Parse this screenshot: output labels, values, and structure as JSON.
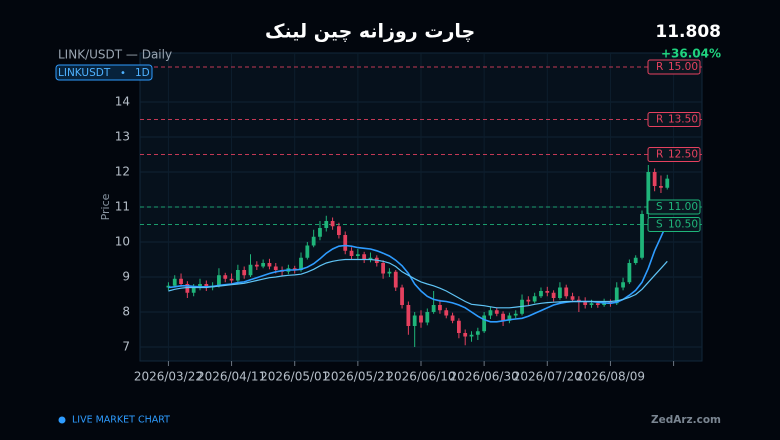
{
  "header": {
    "title": "چارت روزانه چین لینک",
    "subtitle": "LINK/USDT — Daily",
    "price": "11.808",
    "change": "+36.04%",
    "badge_symbol": "LINKUSDT",
    "badge_interval": "1D"
  },
  "footer": {
    "live": "LIVE MARKET CHART",
    "brand": "ZedArz.com"
  },
  "chart_data": {
    "type": "candlestick",
    "y_label": "Price",
    "ylim": [
      6.6,
      15.4
    ],
    "yticks": [
      7,
      8,
      9,
      10,
      11,
      12,
      13,
      14
    ],
    "xlim": [
      "2026-03-13",
      "2026-09-07"
    ],
    "xticks": [
      {
        "value": "2026-03-22",
        "label": "2026/03/22"
      },
      {
        "value": "2026-04-11",
        "label": "2026/04/11"
      },
      {
        "value": "2026-05-01",
        "label": "2026/05/01"
      },
      {
        "value": "2026-05-21",
        "label": "2026/05/21"
      },
      {
        "value": "2026-06-10",
        "label": "2026/06/10"
      },
      {
        "value": "2026-06-30",
        "label": "2026/06/30"
      },
      {
        "value": "2026-07-20",
        "label": "2026/07/20"
      },
      {
        "value": "2026-08-09",
        "label": "2026/08/09"
      },
      {
        "value": "2026-08-29",
        "label": null
      }
    ],
    "grid": true,
    "up_color": "#1fb57a",
    "down_color": "#e5415f",
    "x": [
      "2026-03-22",
      "2026-03-24",
      "2026-03-26",
      "2026-03-28",
      "2026-03-30",
      "2026-04-01",
      "2026-04-03",
      "2026-04-05",
      "2026-04-07",
      "2026-04-09",
      "2026-04-11",
      "2026-04-13",
      "2026-04-15",
      "2026-04-17",
      "2026-04-19",
      "2026-04-21",
      "2026-04-23",
      "2026-04-25",
      "2026-04-27",
      "2026-04-29",
      "2026-05-01",
      "2026-05-03",
      "2026-05-05",
      "2026-05-07",
      "2026-05-09",
      "2026-05-11",
      "2026-05-13",
      "2026-05-15",
      "2026-05-17",
      "2026-05-19",
      "2026-05-21",
      "2026-05-23",
      "2026-05-25",
      "2026-05-27",
      "2026-05-29",
      "2026-05-31",
      "2026-06-02",
      "2026-06-04",
      "2026-06-06",
      "2026-06-08",
      "2026-06-10",
      "2026-06-12",
      "2026-06-14",
      "2026-06-16",
      "2026-06-18",
      "2026-06-20",
      "2026-06-22",
      "2026-06-24",
      "2026-06-26",
      "2026-06-28",
      "2026-06-30",
      "2026-07-02",
      "2026-07-04",
      "2026-07-06",
      "2026-07-08",
      "2026-07-10",
      "2026-07-12",
      "2026-07-14",
      "2026-07-16",
      "2026-07-18",
      "2026-07-20",
      "2026-07-22",
      "2026-07-24",
      "2026-07-26",
      "2026-07-28",
      "2026-07-30",
      "2026-08-01",
      "2026-08-03",
      "2026-08-05",
      "2026-08-07",
      "2026-08-09",
      "2026-08-11",
      "2026-08-13",
      "2026-08-15",
      "2026-08-17",
      "2026-08-19",
      "2026-08-21",
      "2026-08-23",
      "2026-08-25",
      "2026-08-27"
    ],
    "ohlc": [
      [
        8.7,
        8.85,
        8.62,
        8.75
      ],
      [
        8.75,
        9.05,
        8.7,
        8.95
      ],
      [
        8.95,
        9.1,
        8.72,
        8.8
      ],
      [
        8.8,
        8.88,
        8.4,
        8.55
      ],
      [
        8.55,
        8.8,
        8.45,
        8.7
      ],
      [
        8.7,
        8.95,
        8.62,
        8.8
      ],
      [
        8.8,
        8.9,
        8.6,
        8.7
      ],
      [
        8.7,
        8.85,
        8.62,
        8.75
      ],
      [
        8.75,
        9.25,
        8.7,
        9.05
      ],
      [
        9.05,
        9.12,
        8.85,
        8.95
      ],
      [
        8.95,
        9.1,
        8.78,
        8.9
      ],
      [
        8.9,
        9.35,
        8.85,
        9.2
      ],
      [
        9.2,
        9.3,
        8.95,
        9.05
      ],
      [
        9.05,
        9.65,
        9.0,
        9.35
      ],
      [
        9.35,
        9.45,
        9.2,
        9.3
      ],
      [
        9.3,
        9.5,
        9.25,
        9.4
      ],
      [
        9.4,
        9.52,
        9.22,
        9.3
      ],
      [
        9.3,
        9.4,
        9.1,
        9.2
      ],
      [
        9.2,
        9.3,
        9.02,
        9.15
      ],
      [
        9.15,
        9.35,
        9.08,
        9.25
      ],
      [
        9.25,
        9.32,
        9.1,
        9.2
      ],
      [
        9.2,
        9.7,
        9.15,
        9.55
      ],
      [
        9.55,
        10.0,
        9.5,
        9.9
      ],
      [
        9.9,
        10.35,
        9.85,
        10.15
      ],
      [
        10.15,
        10.6,
        10.05,
        10.4
      ],
      [
        10.4,
        10.75,
        10.3,
        10.6
      ],
      [
        10.6,
        10.7,
        10.35,
        10.45
      ],
      [
        10.45,
        10.55,
        10.1,
        10.2
      ],
      [
        10.2,
        10.3,
        9.65,
        9.75
      ],
      [
        9.75,
        9.85,
        9.5,
        9.6
      ],
      [
        9.6,
        9.8,
        9.5,
        9.65
      ],
      [
        9.65,
        9.72,
        9.4,
        9.5
      ],
      [
        9.5,
        9.7,
        9.42,
        9.55
      ],
      [
        9.55,
        9.62,
        9.3,
        9.4
      ],
      [
        9.4,
        9.48,
        8.95,
        9.1
      ],
      [
        9.1,
        9.25,
        9.0,
        9.15
      ],
      [
        9.15,
        9.2,
        8.6,
        8.7
      ],
      [
        8.7,
        8.78,
        8.1,
        8.2
      ],
      [
        8.2,
        8.3,
        7.35,
        7.6
      ],
      [
        7.6,
        8.0,
        7.0,
        7.9
      ],
      [
        7.9,
        8.05,
        7.55,
        7.7
      ],
      [
        7.7,
        8.1,
        7.62,
        8.0
      ],
      [
        8.0,
        8.6,
        7.95,
        8.2
      ],
      [
        8.2,
        8.35,
        7.95,
        8.05
      ],
      [
        8.05,
        8.12,
        7.82,
        7.9
      ],
      [
        7.9,
        7.98,
        7.68,
        7.75
      ],
      [
        7.75,
        7.82,
        7.25,
        7.4
      ],
      [
        7.4,
        7.5,
        7.05,
        7.3
      ],
      [
        7.3,
        7.45,
        7.15,
        7.35
      ],
      [
        7.35,
        7.55,
        7.2,
        7.45
      ],
      [
        7.45,
        8.0,
        7.4,
        7.9
      ],
      [
        7.9,
        8.15,
        7.8,
        8.05
      ],
      [
        8.05,
        8.12,
        7.88,
        7.95
      ],
      [
        7.95,
        8.02,
        7.6,
        7.75
      ],
      [
        7.75,
        7.98,
        7.68,
        7.9
      ],
      [
        7.9,
        8.05,
        7.82,
        7.95
      ],
      [
        7.95,
        8.5,
        7.9,
        8.35
      ],
      [
        8.35,
        8.45,
        8.2,
        8.3
      ],
      [
        8.3,
        8.55,
        8.25,
        8.45
      ],
      [
        8.45,
        8.7,
        8.4,
        8.6
      ],
      [
        8.6,
        8.72,
        8.45,
        8.55
      ],
      [
        8.55,
        8.62,
        8.3,
        8.4
      ],
      [
        8.4,
        8.85,
        8.35,
        8.7
      ],
      [
        8.7,
        8.78,
        8.38,
        8.45
      ],
      [
        8.45,
        8.55,
        8.28,
        8.35
      ],
      [
        8.35,
        8.45,
        8.0,
        8.3
      ],
      [
        8.3,
        8.42,
        8.1,
        8.2
      ],
      [
        8.2,
        8.35,
        8.12,
        8.25
      ],
      [
        8.25,
        8.3,
        8.12,
        8.2
      ],
      [
        8.2,
        8.38,
        8.15,
        8.3
      ],
      [
        8.3,
        8.36,
        8.15,
        8.25
      ],
      [
        8.25,
        8.85,
        8.2,
        8.7
      ],
      [
        8.7,
        8.98,
        8.62,
        8.85
      ],
      [
        8.85,
        9.5,
        8.8,
        9.4
      ],
      [
        9.4,
        9.62,
        9.35,
        9.55
      ],
      [
        9.55,
        10.9,
        9.5,
        10.8
      ],
      [
        10.8,
        12.2,
        10.7,
        12.0
      ],
      [
        12.0,
        12.1,
        11.45,
        11.6
      ],
      [
        11.6,
        11.9,
        11.4,
        11.55
      ],
      [
        11.55,
        11.92,
        11.5,
        11.81
      ]
    ],
    "lines": [
      {
        "color": "#2e9cff",
        "width": 1.6,
        "values": [
          8.7,
          8.72,
          8.75,
          8.75,
          8.73,
          8.72,
          8.72,
          8.73,
          8.76,
          8.78,
          8.8,
          8.84,
          8.86,
          8.92,
          8.98,
          9.04,
          9.1,
          9.15,
          9.18,
          9.2,
          9.2,
          9.22,
          9.28,
          9.38,
          9.52,
          9.68,
          9.8,
          9.88,
          9.9,
          9.88,
          9.84,
          9.82,
          9.8,
          9.75,
          9.68,
          9.6,
          9.48,
          9.32,
          9.1,
          8.8,
          8.6,
          8.45,
          8.36,
          8.32,
          8.3,
          8.26,
          8.2,
          8.12,
          8.0,
          7.88,
          7.78,
          7.72,
          7.72,
          7.75,
          7.78,
          7.8,
          7.82,
          7.88,
          7.96,
          8.04,
          8.12,
          8.2,
          8.25,
          8.28,
          8.3,
          8.3,
          8.3,
          8.3,
          8.28,
          8.26,
          8.25,
          8.28,
          8.36,
          8.48,
          8.62,
          8.85,
          9.25,
          9.75,
          10.15,
          10.55
        ]
      },
      {
        "color": "#5fc4f5",
        "width": 1.2,
        "values": [
          8.6,
          8.65,
          8.68,
          8.7,
          8.7,
          8.7,
          8.7,
          8.72,
          8.74,
          8.76,
          8.78,
          8.8,
          8.82,
          8.86,
          8.9,
          8.94,
          8.98,
          9.0,
          9.03,
          9.05,
          9.06,
          9.08,
          9.14,
          9.22,
          9.32,
          9.4,
          9.45,
          9.48,
          9.5,
          9.5,
          9.5,
          9.5,
          9.5,
          9.48,
          9.45,
          9.4,
          9.3,
          9.15,
          9.05,
          8.95,
          8.86,
          8.8,
          8.75,
          8.68,
          8.6,
          8.5,
          8.4,
          8.3,
          8.22,
          8.2,
          8.18,
          8.15,
          8.12,
          8.12,
          8.12,
          8.14,
          8.16,
          8.18,
          8.22,
          8.25,
          8.27,
          8.28,
          8.29,
          8.3,
          8.3,
          8.3,
          8.3,
          8.3,
          8.3,
          8.3,
          8.3,
          8.32,
          8.36,
          8.42,
          8.5,
          8.65,
          8.85,
          9.05,
          9.25,
          9.45
        ]
      }
    ],
    "levels": [
      {
        "kind": "R",
        "value": 15,
        "label": "15.00",
        "color": "#e5415f"
      },
      {
        "kind": "R",
        "value": 13.5,
        "label": "13.50",
        "color": "#e5415f"
      },
      {
        "kind": "R",
        "value": 12.5,
        "label": "12.50",
        "color": "#e5415f"
      },
      {
        "kind": "S",
        "value": 11,
        "label": "11.00",
        "color": "#1fb57a"
      },
      {
        "kind": "S",
        "value": 10.5,
        "label": "10.50",
        "color": "#1fb57a"
      }
    ]
  }
}
